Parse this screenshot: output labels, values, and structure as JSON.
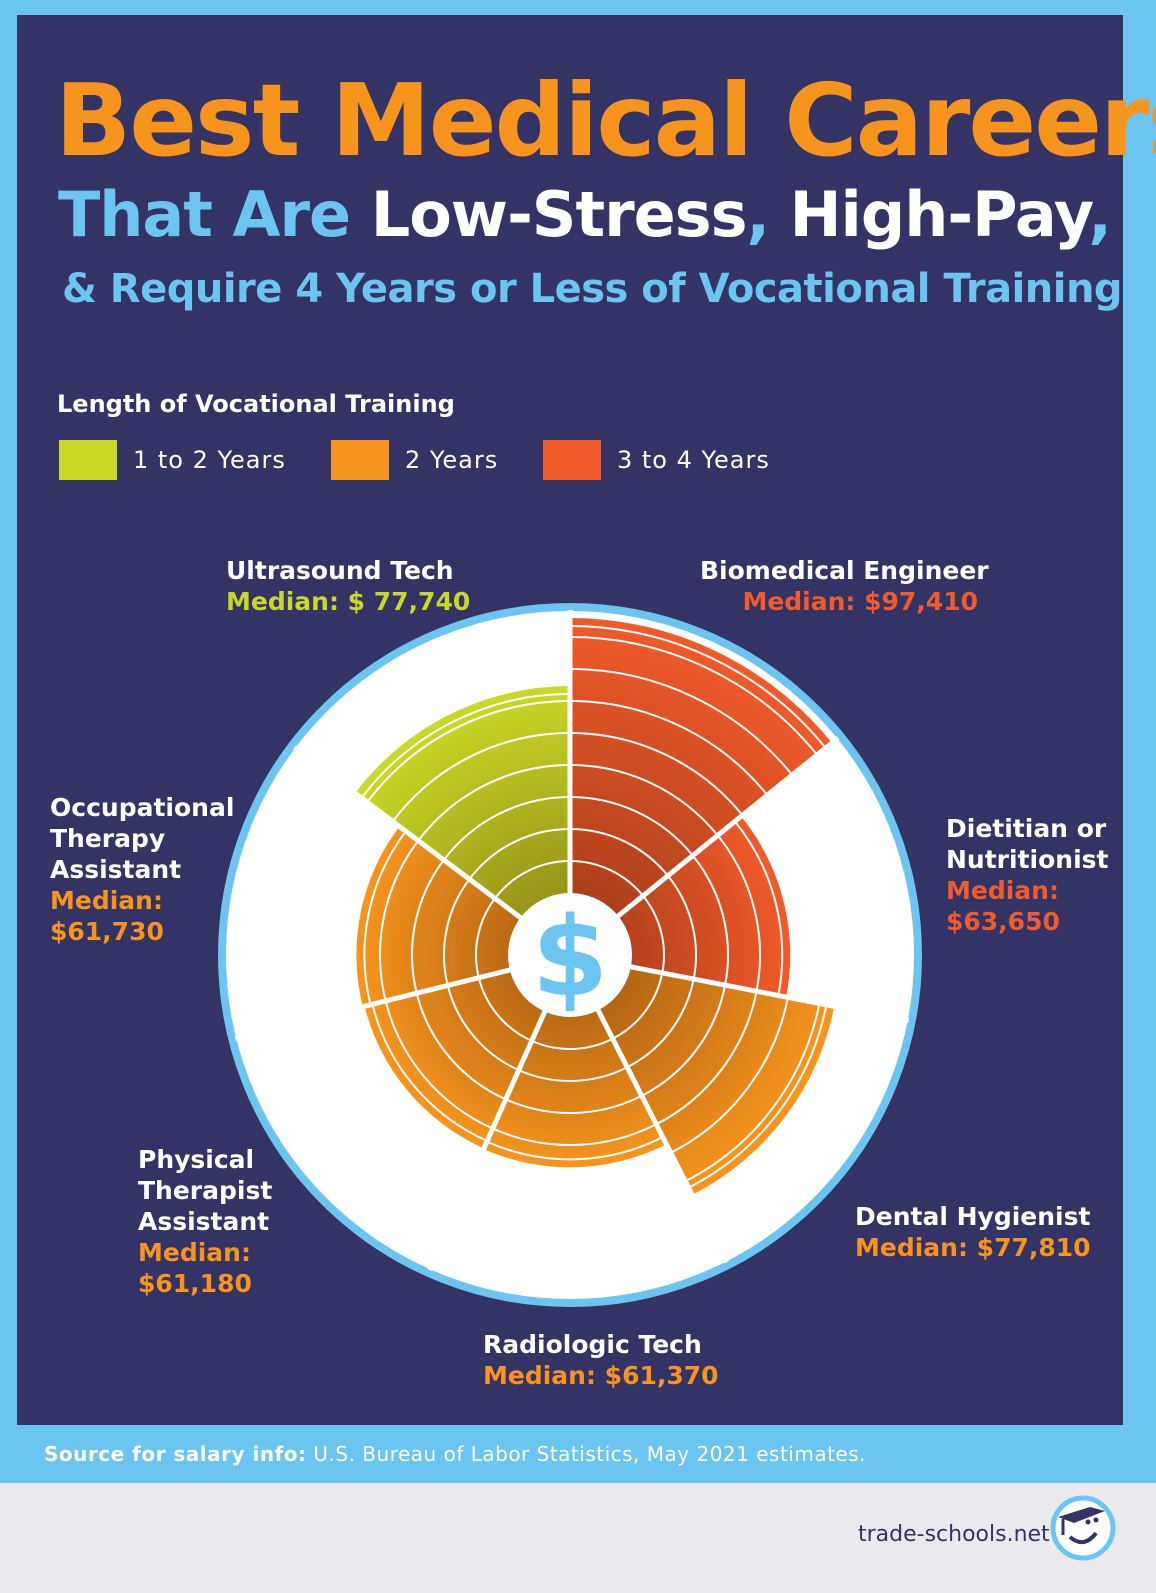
{
  "title": {
    "line1": "Best Medical Careers",
    "line2_a": "That Are ",
    "line2_b": "Low-Stress",
    "line2_c": ", ",
    "line2_d": "High-Pay",
    "line2_e": ",",
    "line3": "& Require 4 Years or Less of Vocational Training"
  },
  "legend": {
    "title": "Length of Vocational Training",
    "items": [
      {
        "label": "1 to 2 Years",
        "color": "#c9d925"
      },
      {
        "label": "2 Years",
        "color": "#f7941d"
      },
      {
        "label": "3 to 4 Years",
        "color": "#f15a2b"
      }
    ]
  },
  "chart_data": {
    "type": "polar-area",
    "center_icon": "dollar-sign-icon",
    "center_text": "$",
    "categories": [
      "Biomedical Engineer",
      "Dietitian or Nutritionist",
      "Dental Hygienist",
      "Radiologic Tech",
      "Physical Therapist Assistant",
      "Occupational Therapy Assistant",
      "Ultrasound Tech"
    ],
    "values": [
      97410,
      63650,
      77810,
      61370,
      61180,
      61730,
      77740
    ],
    "value_labels": [
      "Median: $97,410",
      "Median: $63,650",
      "Median: $77,810",
      "Median: $61,370",
      "Median: $61,180",
      "Median: $61,730",
      "Median: $ 77,740"
    ],
    "training": [
      "3 to 4 Years",
      "3 to 4 Years",
      "2 Years",
      "2 Years",
      "2 Years",
      "2 Years",
      "1 to 2 Years"
    ],
    "colors": [
      "#f15a2b",
      "#f15a2b",
      "#f7941d",
      "#f7941d",
      "#f7941d",
      "#f7941d",
      "#c9d925"
    ]
  },
  "labels": {
    "bio": {
      "name": "Biomedical Engineer",
      "median": "Median: $97,410"
    },
    "diet": {
      "name1": "Dietitian or",
      "name2": "Nutritionist",
      "median1": "Median:",
      "median2": "$63,650"
    },
    "dental": {
      "name": "Dental Hygienist",
      "median": "Median: $77,810"
    },
    "radio": {
      "name": "Radiologic Tech",
      "median": "Median: $61,370"
    },
    "pta": {
      "name1": "Physical",
      "name2": "Therapist",
      "name3": "Assistant",
      "median1": "Median:",
      "median2": "$61,180"
    },
    "ota": {
      "name1": "Occupational",
      "name2": "Therapy",
      "name3": "Assistant",
      "median1": "Median:",
      "median2": "$61,730"
    },
    "ultra": {
      "name": "Ultrasound Tech",
      "median": "Median: $ 77,740"
    }
  },
  "source": {
    "bold": "Source for salary info:",
    "text": " U.S. Bureau of Labor Statistics, May 2021 estimates."
  },
  "brand": {
    "text": "trade-schools.net",
    "icon": "graduation-cap-smiley-logo"
  }
}
